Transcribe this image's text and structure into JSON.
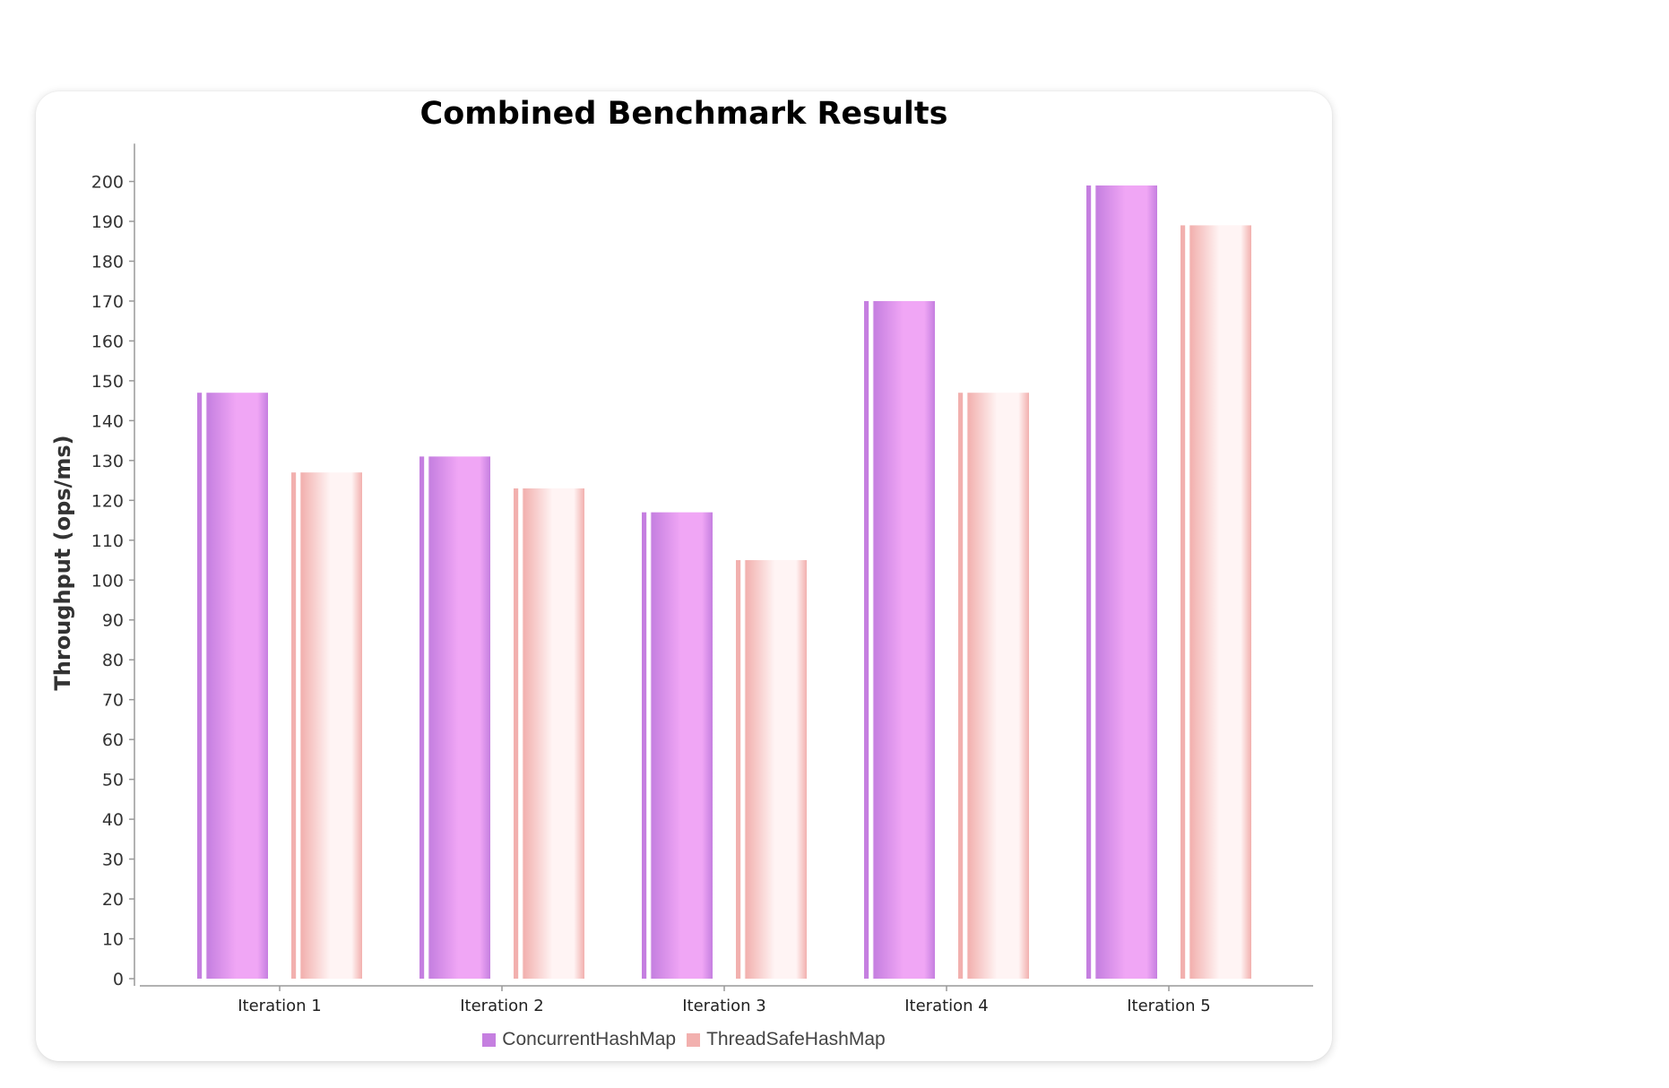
{
  "chart_data": {
    "type": "bar",
    "title": "Combined Benchmark Results",
    "xlabel": "",
    "ylabel": "Throughput (ops/ms)",
    "categories": [
      "Iteration 1",
      "Iteration 2",
      "Iteration 3",
      "Iteration 4",
      "Iteration 5"
    ],
    "series": [
      {
        "name": "ConcurrentHashMap",
        "values": [
          147,
          131,
          117,
          170,
          199
        ],
        "color": "#c57fe0",
        "highlight": "#f0a6f5"
      },
      {
        "name": "ThreadSafeHashMap",
        "values": [
          127,
          123,
          105,
          147,
          189
        ],
        "color": "#f2b0ae",
        "highlight": "#fff4f4"
      }
    ],
    "ylim": [
      0,
      205
    ],
    "yticks": [
      0,
      10,
      20,
      30,
      40,
      50,
      60,
      70,
      80,
      90,
      100,
      110,
      120,
      130,
      140,
      150,
      160,
      170,
      180,
      190,
      200
    ],
    "grid": false,
    "legend_position": "bottom"
  }
}
